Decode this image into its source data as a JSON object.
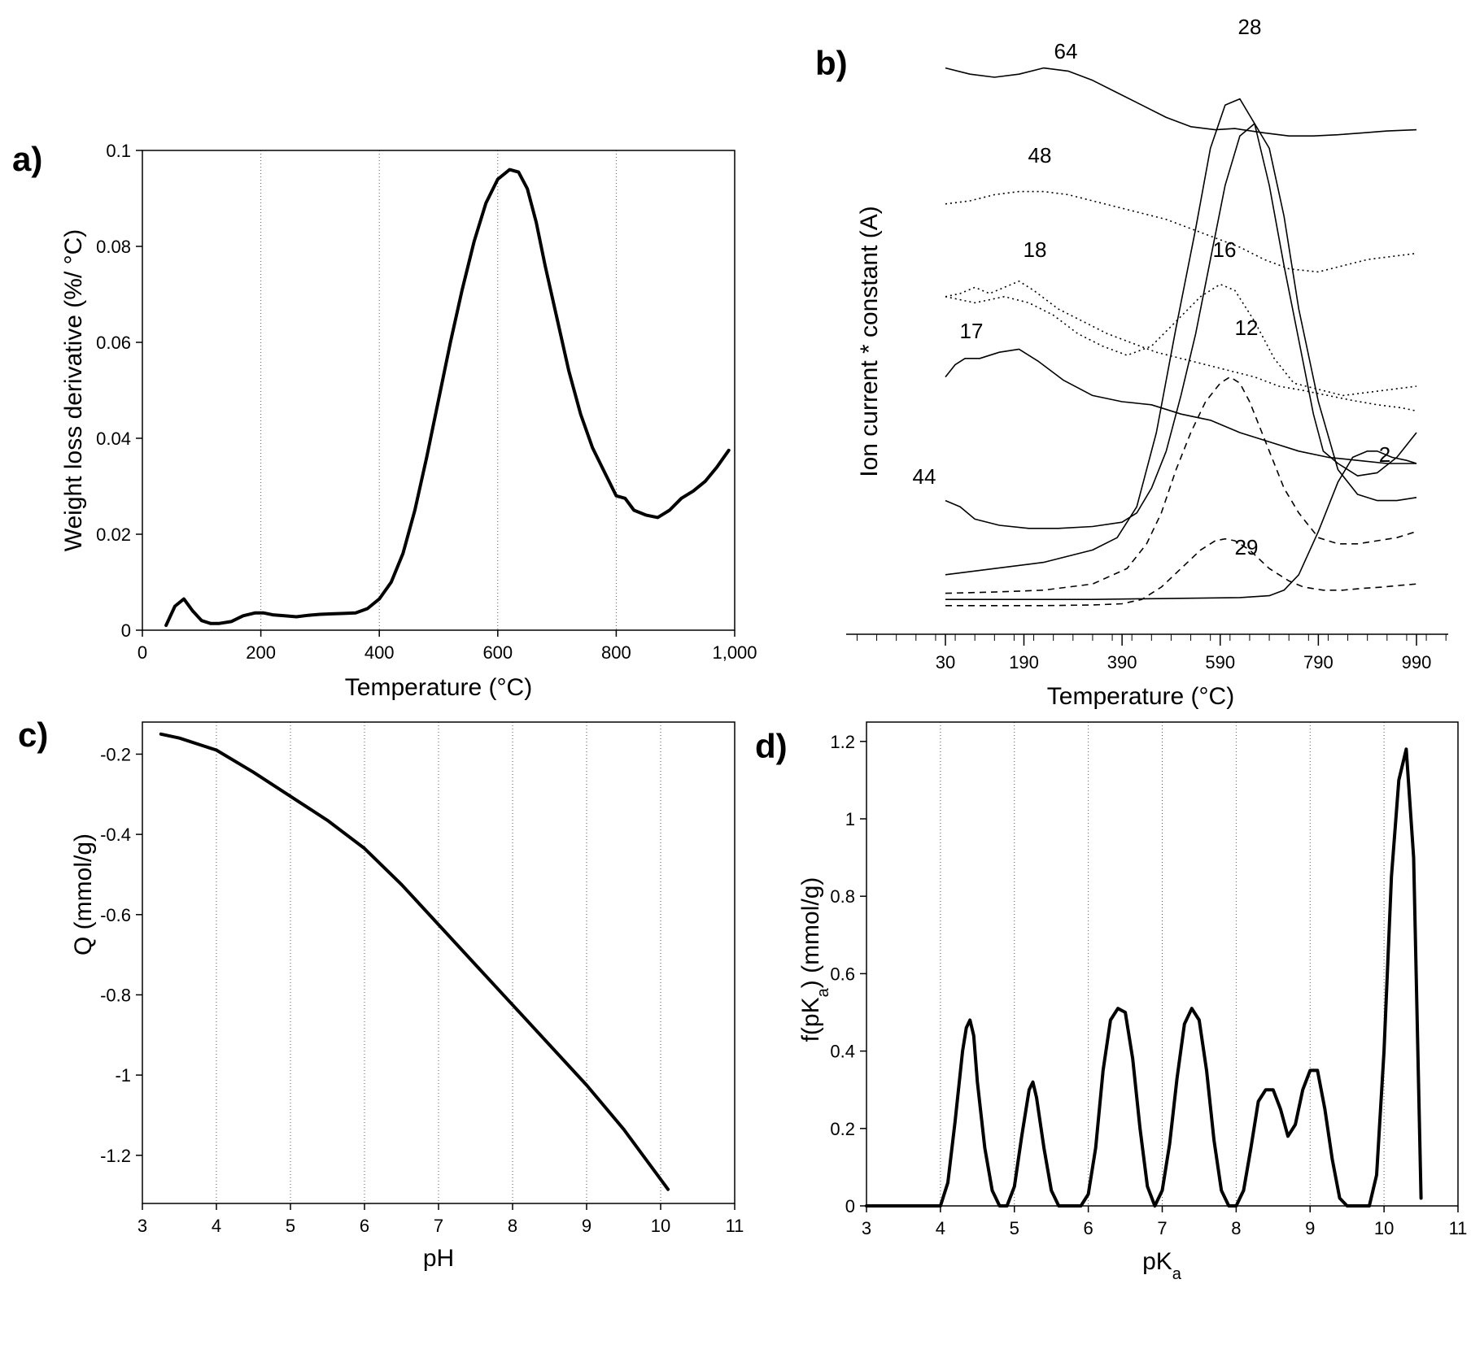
{
  "chart_data": [
    {
      "panel": "a)",
      "type": "line",
      "xlabel": "Temperature (°C)",
      "ylabel": "Weight loss derivative  (%/ °C)",
      "xlim": [
        0,
        1000
      ],
      "ylim": [
        0,
        0.1
      ],
      "xticks": [
        "0",
        "200",
        "400",
        "600",
        "800",
        "1,000"
      ],
      "yticks": [
        "0",
        "0.02",
        "0.04",
        "0.06",
        "0.08",
        "0.1"
      ],
      "grid": "vertical dotted at 200, 400, 600, 800",
      "series": [
        {
          "x": [
            40,
            55,
            70,
            85,
            100,
            115,
            130,
            150,
            170,
            190,
            205,
            220,
            240,
            260,
            280,
            300,
            320,
            340,
            360,
            380,
            400,
            420,
            440,
            460,
            480,
            500,
            520,
            540,
            560,
            580,
            600,
            620,
            635,
            650,
            665,
            680,
            700,
            720,
            740,
            760,
            780,
            800,
            815,
            830,
            850,
            870,
            890,
            910,
            930,
            950,
            970,
            990
          ],
          "y": [
            0.001,
            0.005,
            0.0065,
            0.004,
            0.002,
            0.0014,
            0.0014,
            0.0018,
            0.003,
            0.0036,
            0.0036,
            0.0032,
            0.003,
            0.0028,
            0.0031,
            0.0033,
            0.0034,
            0.0035,
            0.0036,
            0.0045,
            0.0065,
            0.01,
            0.016,
            0.025,
            0.036,
            0.048,
            0.06,
            0.071,
            0.081,
            0.089,
            0.094,
            0.096,
            0.0955,
            0.092,
            0.085,
            0.076,
            0.065,
            0.054,
            0.045,
            0.038,
            0.033,
            0.028,
            0.0275,
            0.025,
            0.024,
            0.0235,
            0.025,
            0.0275,
            0.029,
            0.031,
            0.034,
            0.0375
          ]
        }
      ]
    },
    {
      "panel": "b)",
      "type": "line",
      "xlabel": "Temperature",
      "xunit": "(°C)",
      "ylabel": "Ion current * constant (A)",
      "xlim": [
        30,
        990
      ],
      "xticks": [
        "30",
        "190",
        "390",
        "590",
        "790",
        "990"
      ],
      "y_units": "arbitrary, curves offset vertically (0-100 scale)",
      "series": [
        {
          "name": "64",
          "style": "solid",
          "x": [
            30,
            80,
            130,
            180,
            230,
            280,
            330,
            380,
            430,
            480,
            530,
            580,
            620,
            680,
            730,
            780,
            830,
            880,
            930,
            990
          ],
          "y": [
            89,
            88,
            87.5,
            88,
            89,
            88.5,
            87,
            85,
            83,
            81,
            79.5,
            79,
            79.2,
            78.5,
            78,
            78,
            78.2,
            78.5,
            78.8,
            79
          ]
        },
        {
          "name": "28",
          "style": "solid",
          "x": [
            30,
            130,
            230,
            330,
            380,
            420,
            460,
            500,
            540,
            570,
            600,
            630,
            660,
            690,
            720,
            750,
            780,
            800,
            830,
            870,
            910,
            950,
            990
          ],
          "y": [
            7,
            8,
            9,
            11,
            13,
            18,
            30,
            47,
            63,
            76,
            83,
            84,
            80,
            70,
            57,
            45,
            33,
            27,
            25,
            23,
            23.5,
            26,
            30
          ]
        },
        {
          "name": "48",
          "style": "dotted",
          "x": [
            30,
            80,
            130,
            180,
            230,
            280,
            330,
            380,
            430,
            480,
            530,
            580,
            630,
            680,
            730,
            790,
            840,
            890,
            940,
            990
          ],
          "y": [
            67,
            67.5,
            68.5,
            69,
            69,
            68.5,
            67.5,
            66.5,
            65.5,
            64.5,
            63,
            61.5,
            60,
            58,
            56.5,
            56,
            57,
            58,
            58.5,
            59
          ]
        },
        {
          "name": "18",
          "style": "dotted",
          "x": [
            30,
            60,
            90,
            120,
            150,
            180,
            210,
            260,
            310,
            360,
            410,
            460,
            510,
            560,
            610,
            660,
            710,
            760,
            810,
            860,
            910,
            960,
            990
          ],
          "y": [
            52,
            52.5,
            53.5,
            52.5,
            53.5,
            54.5,
            53,
            50,
            48,
            46,
            44.5,
            43,
            42,
            41,
            40,
            39,
            37.5,
            36.8,
            36,
            35.2,
            34.5,
            34,
            33.5
          ]
        },
        {
          "name": "16",
          "style": "dotted",
          "x": [
            30,
            60,
            90,
            120,
            150,
            200,
            250,
            300,
            350,
            400,
            450,
            500,
            550,
            590,
            620,
            660,
            700,
            740,
            790,
            840,
            890,
            940,
            990
          ],
          "y": [
            52,
            51.5,
            51,
            51.5,
            52,
            51,
            49,
            46,
            44,
            42.5,
            44,
            48,
            52,
            54,
            53,
            48,
            42,
            38,
            37,
            36,
            36.5,
            37,
            37.5
          ]
        },
        {
          "name": "17",
          "style": "solid",
          "x": [
            30,
            50,
            70,
            100,
            140,
            180,
            220,
            270,
            330,
            390,
            450,
            510,
            570,
            630,
            690,
            750,
            810,
            870,
            930,
            990
          ],
          "y": [
            39,
            41,
            42,
            42,
            43,
            43.5,
            41.5,
            38.5,
            36,
            35,
            34.5,
            33,
            32,
            30,
            28.5,
            27,
            26,
            25.5,
            25,
            25
          ]
        },
        {
          "name": "12",
          "style": "dashed",
          "x": [
            30,
            130,
            230,
            330,
            400,
            440,
            470,
            500,
            530,
            560,
            590,
            610,
            630,
            650,
            670,
            690,
            720,
            750,
            790,
            830,
            870,
            910,
            950,
            990
          ],
          "y": [
            4,
            4.2,
            4.5,
            5.5,
            8,
            12,
            17,
            24,
            30,
            35,
            38,
            39,
            38,
            35,
            31,
            27,
            21,
            17,
            13,
            12,
            12,
            12.5,
            13,
            14
          ]
        },
        {
          "name": "44",
          "style": "solid",
          "x": [
            30,
            60,
            90,
            140,
            200,
            260,
            330,
            390,
            420,
            450,
            480,
            510,
            540,
            570,
            600,
            630,
            660,
            690,
            720,
            750,
            790,
            830,
            870,
            910,
            950,
            990
          ],
          "y": [
            19,
            18,
            16,
            15,
            14.5,
            14.5,
            14.8,
            15.5,
            17,
            21,
            27,
            36,
            46,
            58,
            70,
            78,
            80,
            76,
            65,
            50,
            35,
            24,
            20,
            19,
            19,
            19.5
          ]
        },
        {
          "name": "29",
          "style": "dashed",
          "x": [
            30,
            130,
            230,
            330,
            390,
            430,
            470,
            510,
            550,
            580,
            600,
            620,
            650,
            690,
            730,
            760,
            800,
            840,
            880,
            920,
            960,
            990
          ],
          "y": [
            2,
            2,
            2,
            2.1,
            2.3,
            3,
            5,
            8,
            11,
            12.5,
            12.8,
            12.5,
            11,
            8,
            6,
            5,
            4.5,
            4.5,
            4.8,
            5,
            5.3,
            5.5
          ]
        },
        {
          "name": "2",
          "style": "solid",
          "x": [
            30,
            130,
            230,
            330,
            430,
            530,
            630,
            690,
            720,
            750,
            790,
            830,
            860,
            890,
            910,
            940,
            970,
            990
          ],
          "y": [
            3,
            3,
            3,
            3,
            3.1,
            3.2,
            3.3,
            3.6,
            4.5,
            7,
            14,
            22,
            26,
            27,
            27,
            26,
            25.5,
            25
          ]
        }
      ]
    },
    {
      "panel": "c)",
      "type": "line",
      "xlabel": "pH",
      "ylabel": "Q  (mmol/g)",
      "xlim": [
        3,
        11
      ],
      "ylim": [
        -1.32,
        -0.12
      ],
      "xticks": [
        "3",
        "4",
        "5",
        "6",
        "7",
        "8",
        "9",
        "10",
        "11"
      ],
      "yticks": [
        "-0.2",
        "-0.4",
        "-0.6",
        "-0.8",
        "-1",
        "-1.2"
      ],
      "grid": "vertical dotted at 4, 5, 6, 7, 8, 9, 10",
      "series": [
        {
          "x": [
            3.25,
            3.5,
            4.0,
            4.5,
            5.0,
            5.5,
            6.0,
            6.5,
            7.0,
            7.5,
            8.0,
            8.5,
            9.0,
            9.5,
            10.1
          ],
          "y": [
            -0.15,
            -0.16,
            -0.19,
            -0.245,
            -0.305,
            -0.365,
            -0.435,
            -0.525,
            -0.625,
            -0.725,
            -0.825,
            -0.925,
            -1.025,
            -1.135,
            -1.285
          ]
        }
      ]
    },
    {
      "panel": "d)",
      "type": "line",
      "xlabel": "pK",
      "xlabel_sub": "a",
      "ylabel": "f(pK",
      "ylabel_sub": "a",
      "ylabel_unit": ")  (mmol/g)",
      "xlim": [
        3,
        11
      ],
      "ylim": [
        0,
        1.25
      ],
      "xticks": [
        "3",
        "4",
        "5",
        "6",
        "7",
        "8",
        "9",
        "10",
        "11"
      ],
      "yticks": [
        "0",
        "0.2",
        "0.4",
        "0.6",
        "0.8",
        "1",
        "1.2"
      ],
      "grid": "vertical dotted at 4, 5, 6, 7, 8, 9, 10",
      "series": [
        {
          "x": [
            3.0,
            4.0,
            4.1,
            4.2,
            4.3,
            4.35,
            4.4,
            4.45,
            4.5,
            4.6,
            4.7,
            4.8,
            4.9,
            5.0,
            5.1,
            5.2,
            5.25,
            5.3,
            5.4,
            5.5,
            5.6,
            5.9,
            6.0,
            6.1,
            6.2,
            6.3,
            6.4,
            6.5,
            6.6,
            6.7,
            6.8,
            6.9,
            7.0,
            7.1,
            7.2,
            7.3,
            7.4,
            7.5,
            7.6,
            7.7,
            7.8,
            7.9,
            8.0,
            8.1,
            8.2,
            8.3,
            8.4,
            8.5,
            8.6,
            8.7,
            8.8,
            8.9,
            9.0,
            9.1,
            9.2,
            9.3,
            9.4,
            9.5,
            9.8,
            9.9,
            10.0,
            10.1,
            10.2,
            10.3,
            10.4,
            10.5
          ],
          "y": [
            0,
            0,
            0.06,
            0.22,
            0.4,
            0.46,
            0.48,
            0.44,
            0.32,
            0.15,
            0.04,
            0,
            0,
            0.05,
            0.18,
            0.3,
            0.32,
            0.28,
            0.15,
            0.04,
            0,
            0,
            0.03,
            0.15,
            0.35,
            0.48,
            0.51,
            0.5,
            0.38,
            0.2,
            0.05,
            0,
            0.04,
            0.16,
            0.33,
            0.47,
            0.51,
            0.48,
            0.35,
            0.17,
            0.04,
            0,
            0,
            0.04,
            0.15,
            0.27,
            0.3,
            0.3,
            0.25,
            0.18,
            0.21,
            0.3,
            0.35,
            0.35,
            0.25,
            0.12,
            0.02,
            0,
            0,
            0.08,
            0.4,
            0.85,
            1.1,
            1.18,
            0.9,
            0.02
          ]
        }
      ]
    }
  ],
  "panels": {
    "b_curve_labels": [
      "64",
      "28",
      "48",
      "18",
      "16",
      "17",
      "12",
      "44",
      "29",
      "2"
    ]
  }
}
